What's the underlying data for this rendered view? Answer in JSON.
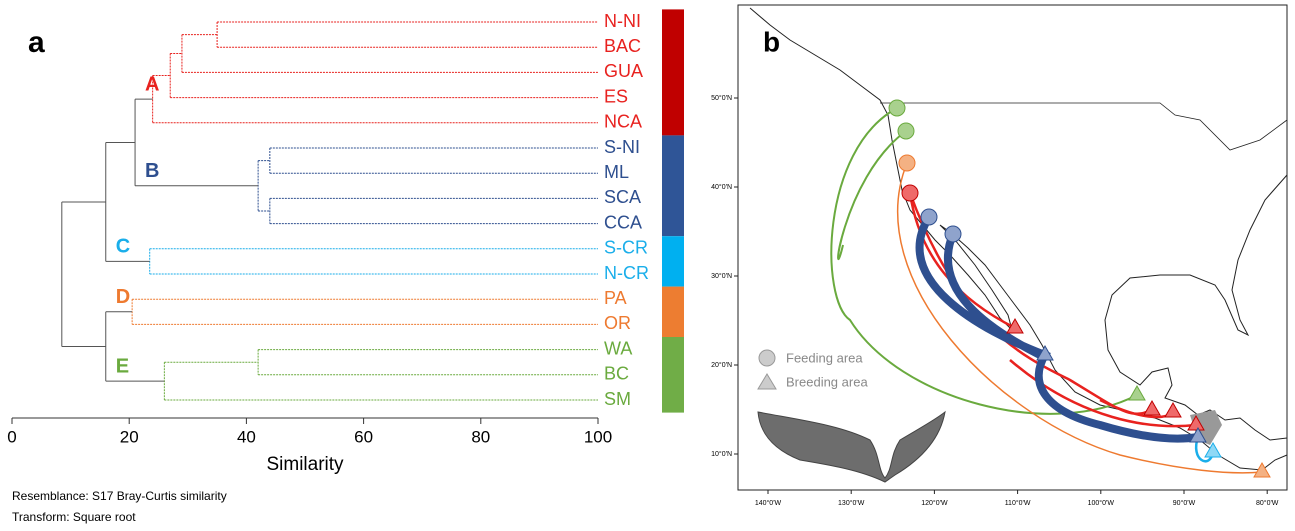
{
  "panel_a": {
    "label": "a",
    "axis": {
      "title": "Similarity",
      "xlim": [
        0,
        100
      ],
      "xticks": [
        0,
        20,
        40,
        60,
        80,
        100
      ]
    },
    "tree": {
      "similarity": 8.5,
      "children": [
        {
          "similarity": 16,
          "children": [
            {
              "similarity": 21,
              "children": [
                {
                  "group": "A",
                  "color": "#e8221f",
                  "bar_color": "#c00000",
                  "similarity": 24,
                  "children": [
                    {
                      "similarity": 27,
                      "children": [
                        {
                          "similarity": 29,
                          "children": [
                            {
                              "similarity": 35,
                              "children": [
                                {
                                  "name": "N-NI"
                                },
                                {
                                  "name": "BAC"
                                }
                              ]
                            },
                            {
                              "name": "GUA"
                            }
                          ]
                        },
                        {
                          "name": "ES"
                        }
                      ]
                    },
                    {
                      "name": "NCA"
                    }
                  ]
                },
                {
                  "group": "B",
                  "color": "#2e4f8f",
                  "bar_color": "#2f5597",
                  "similarity": 42,
                  "children": [
                    {
                      "similarity": 44,
                      "children": [
                        {
                          "name": "S-NI"
                        },
                        {
                          "name": "ML"
                        }
                      ]
                    },
                    {
                      "similarity": 44,
                      "children": [
                        {
                          "name": "SCA"
                        },
                        {
                          "name": "CCA"
                        }
                      ]
                    }
                  ]
                }
              ]
            },
            {
              "group": "C",
              "color": "#1aaeea",
              "bar_color": "#00b0f0",
              "similarity": 23.5,
              "children": [
                {
                  "name": "S-CR"
                },
                {
                  "name": "N-CR"
                }
              ]
            }
          ]
        },
        {
          "similarity": 16,
          "children": [
            {
              "group": "D",
              "color": "#ee7a30",
              "bar_color": "#ed7d31",
              "similarity": 20.5,
              "children": [
                {
                  "name": "PA"
                },
                {
                  "name": "OR"
                }
              ]
            },
            {
              "group": "E",
              "color": "#6aaa3e",
              "bar_color": "#70ad47",
              "similarity": 26,
              "children": [
                {
                  "similarity": 42,
                  "children": [
                    {
                      "name": "WA"
                    },
                    {
                      "name": "BC"
                    }
                  ]
                },
                {
                  "name": "SM"
                }
              ]
            }
          ]
        }
      ]
    },
    "notes": [
      "Resemblance: S17 Bray-Curtis similarity",
      "Transform: Square root"
    ]
  },
  "panel_b": {
    "label": "b",
    "lat_labels": [
      "50°0'N",
      "40°0'N",
      "30°0'N",
      "20°0'N",
      "10°0'N"
    ],
    "lon_labels": [
      "140°0'W",
      "130°0'W",
      "120°0'W",
      "110°0'W",
      "100°0'W",
      "90°0'W",
      "80°0'W"
    ],
    "legend": [
      "Feeding area",
      "Breeding area"
    ]
  }
}
